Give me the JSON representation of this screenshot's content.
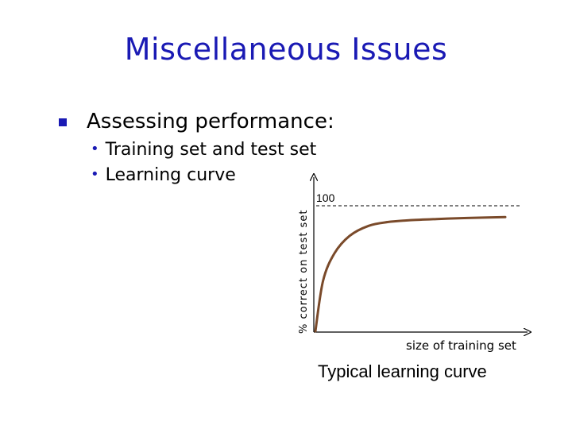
{
  "title": "Miscellaneous Issues",
  "bullets": {
    "level1": "Assessing performance:",
    "level2": [
      "Training set and test set",
      "Learning curve"
    ]
  },
  "chart_data": {
    "type": "line",
    "xlabel": "size of training set",
    "ylabel": "% correct on test set",
    "ymax_label": "100",
    "x_ticks": false,
    "grid": false,
    "reference_line": {
      "y": 100,
      "style": "dashed"
    },
    "curve_color": "#7a4a2a",
    "series": [
      {
        "x": [
          0,
          4,
          10,
          18,
          28,
          38,
          50,
          65,
          80,
          100
        ],
        "values": [
          0,
          40,
          62,
          76,
          84,
          87,
          88.5,
          89.5,
          90.3,
          91
        ]
      }
    ]
  },
  "caption": "Typical learning curve",
  "colors": {
    "title": "#1a1ab4",
    "bullet": "#1a1ab4",
    "curve": "#7a4a2a"
  }
}
